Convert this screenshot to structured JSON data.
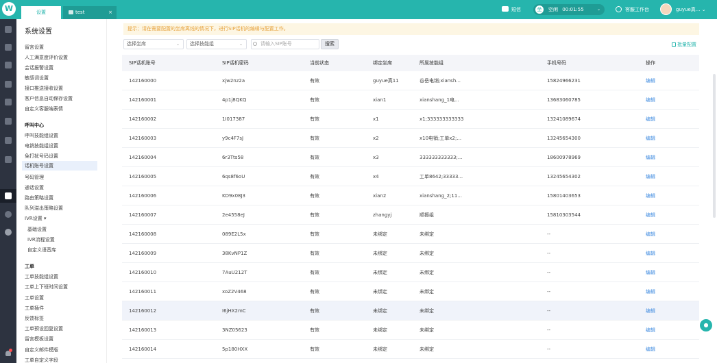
{
  "app": {
    "logo_glyph": "W",
    "accent": "#26b5ad"
  },
  "tabs": [
    {
      "label": "设置",
      "active": true
    },
    {
      "label": "test",
      "active": false,
      "close": "×"
    }
  ],
  "topbar": {
    "sms": "短信",
    "status_icon": "坐",
    "status": "空闲",
    "timer": "00:01:55",
    "caret": "⌄",
    "workbench": "客服工作台",
    "user": "guyue真...",
    "user_caret": "⌄"
  },
  "sidebar_icons": [
    "home-icon",
    "grid-icon",
    "doc-icon",
    "phone-icon",
    "chat-icon",
    "user-icon",
    "chart-icon",
    "search-icon",
    "settings-icon",
    "book-icon",
    "circle-icon",
    "info-icon"
  ],
  "menu": {
    "title": "系统设置",
    "items": [
      {
        "label": "留言设置",
        "type": "item"
      },
      {
        "label": "人工满意度评价设置",
        "type": "item"
      },
      {
        "label": "会话报警设置",
        "type": "item"
      },
      {
        "label": "敏感词设置",
        "type": "item"
      },
      {
        "label": "接口推送接收设置",
        "type": "item"
      },
      {
        "label": "客户信息自动保存设置",
        "type": "item"
      },
      {
        "label": "自定义客服端表情",
        "type": "item"
      },
      {
        "label": "呼叫中心",
        "type": "head"
      },
      {
        "label": "呼叫技能组设置",
        "type": "item"
      },
      {
        "label": "电销技能组设置",
        "type": "item"
      },
      {
        "label": "免打扰号码设置",
        "type": "item"
      },
      {
        "label": "话机账号设置",
        "type": "item",
        "selected": true
      },
      {
        "label": "号码管理",
        "type": "item"
      },
      {
        "label": "通话设置",
        "type": "item"
      },
      {
        "label": "路由策略设置",
        "type": "item"
      },
      {
        "label": "队列溢出策略设置",
        "type": "item"
      },
      {
        "label": "IVR设置 ▾",
        "type": "item"
      },
      {
        "label": "基础设置",
        "type": "sub"
      },
      {
        "label": "IVR流程设置",
        "type": "sub"
      },
      {
        "label": "自定义语音库",
        "type": "sub"
      },
      {
        "label": "工单",
        "type": "head"
      },
      {
        "label": "工单技能组设置",
        "type": "item"
      },
      {
        "label": "工单上下班时间设置",
        "type": "item"
      },
      {
        "label": "工单设置",
        "type": "item"
      },
      {
        "label": "工单插件",
        "type": "item"
      },
      {
        "label": "反馈标签",
        "type": "item"
      },
      {
        "label": "工单预设回复设置",
        "type": "item"
      },
      {
        "label": "留言模板设置",
        "type": "item"
      },
      {
        "label": "自定义邮件模版",
        "type": "item"
      },
      {
        "label": "工单自定义字段",
        "type": "item"
      }
    ]
  },
  "notice": "提示：请在需要配置的坐席离线的情况下，进行SIP话机的编辑与配置工作。",
  "filters": {
    "seat_placeholder": "选择坐席",
    "skill_placeholder": "选择技能组",
    "search_placeholder": "请输入SIP账号",
    "search_button": "搜索",
    "select_caret": "⌄",
    "batch": "批量配置"
  },
  "table": {
    "headers": [
      "SIP话机账号",
      "SIP话机密码",
      "当前状态",
      "绑定坐席",
      "所属技能组",
      "手机号码",
      "操作"
    ],
    "rows": [
      [
        "142160000",
        "xjw2nz2a",
        "有效",
        "guyue真11",
        "谷岳电销;xiansh...",
        "15824966231",
        "编辑"
      ],
      [
        "142160001",
        "4p1j8QKQ",
        "有效",
        "xian1",
        "xianshang_1电...",
        "13683060785",
        "编辑"
      ],
      [
        "142160002",
        "1I017387",
        "有效",
        "x1",
        "x1;333333333333",
        "13241089674",
        "编辑"
      ],
      [
        "142160003",
        "y9c4F7sJ",
        "有效",
        "x2",
        "x10电销;工单x2;...",
        "13245654300",
        "编辑"
      ],
      [
        "142160004",
        "6r3Tts58",
        "有效",
        "x3",
        "333333333333;...",
        "18600978969",
        "编辑"
      ],
      [
        "142160005",
        "6qs8f6oU",
        "有效",
        "x4",
        "工单8642;33333...",
        "13245654302",
        "编辑"
      ],
      [
        "142160006",
        "KD9x08J3",
        "有效",
        "xian2",
        "xianshang_2;11...",
        "15801403653",
        "编辑"
      ],
      [
        "142160007",
        "2e4558eJ",
        "有效",
        "zhangyj",
        "顺振组",
        "15810303544",
        "编辑"
      ],
      [
        "142160008",
        "089E2L5x",
        "有效",
        "未绑定",
        "未绑定",
        "--",
        "编辑"
      ],
      [
        "142160009",
        "38KvNP1Z",
        "有效",
        "未绑定",
        "未绑定",
        "--",
        "编辑"
      ],
      [
        "142160010",
        "7AuU212T",
        "有效",
        "未绑定",
        "未绑定",
        "--",
        "编辑"
      ],
      [
        "142160011",
        "xoZ2V468",
        "有效",
        "未绑定",
        "未绑定",
        "--",
        "编辑"
      ],
      [
        "142160012",
        "I6jHX2mC",
        "有效",
        "未绑定",
        "未绑定",
        "--",
        "编辑"
      ],
      [
        "142160013",
        "3NZ05623",
        "有效",
        "未绑定",
        "未绑定",
        "--",
        "编辑"
      ],
      [
        "142160014",
        "5p180HXX",
        "有效",
        "未绑定",
        "未绑定",
        "--",
        "编辑"
      ]
    ]
  }
}
